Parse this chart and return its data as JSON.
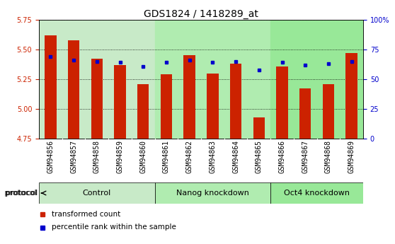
{
  "title": "GDS1824 / 1418289_at",
  "samples": [
    "GSM94856",
    "GSM94857",
    "GSM94858",
    "GSM94859",
    "GSM94860",
    "GSM94861",
    "GSM94862",
    "GSM94863",
    "GSM94864",
    "GSM94865",
    "GSM94866",
    "GSM94867",
    "GSM94868",
    "GSM94869"
  ],
  "red_values": [
    5.62,
    5.58,
    5.42,
    5.37,
    5.21,
    5.29,
    5.45,
    5.3,
    5.38,
    4.93,
    5.36,
    5.17,
    5.21,
    5.47
  ],
  "blue_pct": [
    69,
    66,
    65,
    64,
    61,
    64,
    66,
    64,
    65,
    58,
    64,
    62,
    63,
    65
  ],
  "y_min": 4.75,
  "y_max": 5.75,
  "y_ticks": [
    4.75,
    5.0,
    5.25,
    5.5,
    5.75
  ],
  "y2_ticks": [
    0,
    25,
    50,
    75,
    100
  ],
  "groups": [
    {
      "label": "Control",
      "start": 0,
      "end": 5,
      "color": "#c8eac8"
    },
    {
      "label": "Nanog knockdown",
      "start": 5,
      "end": 10,
      "color": "#b0ecb0"
    },
    {
      "label": "Oct4 knockdown",
      "start": 10,
      "end": 14,
      "color": "#98e898"
    }
  ],
  "bar_color": "#cc2200",
  "dot_color": "#0000cc",
  "bar_width": 0.5,
  "baseline": 4.75,
  "title_fontsize": 10,
  "tick_fontsize": 7,
  "label_fontsize": 8,
  "group_fontsize": 8,
  "legend_fontsize": 7.5,
  "xtick_bg": "#d0d0d0"
}
